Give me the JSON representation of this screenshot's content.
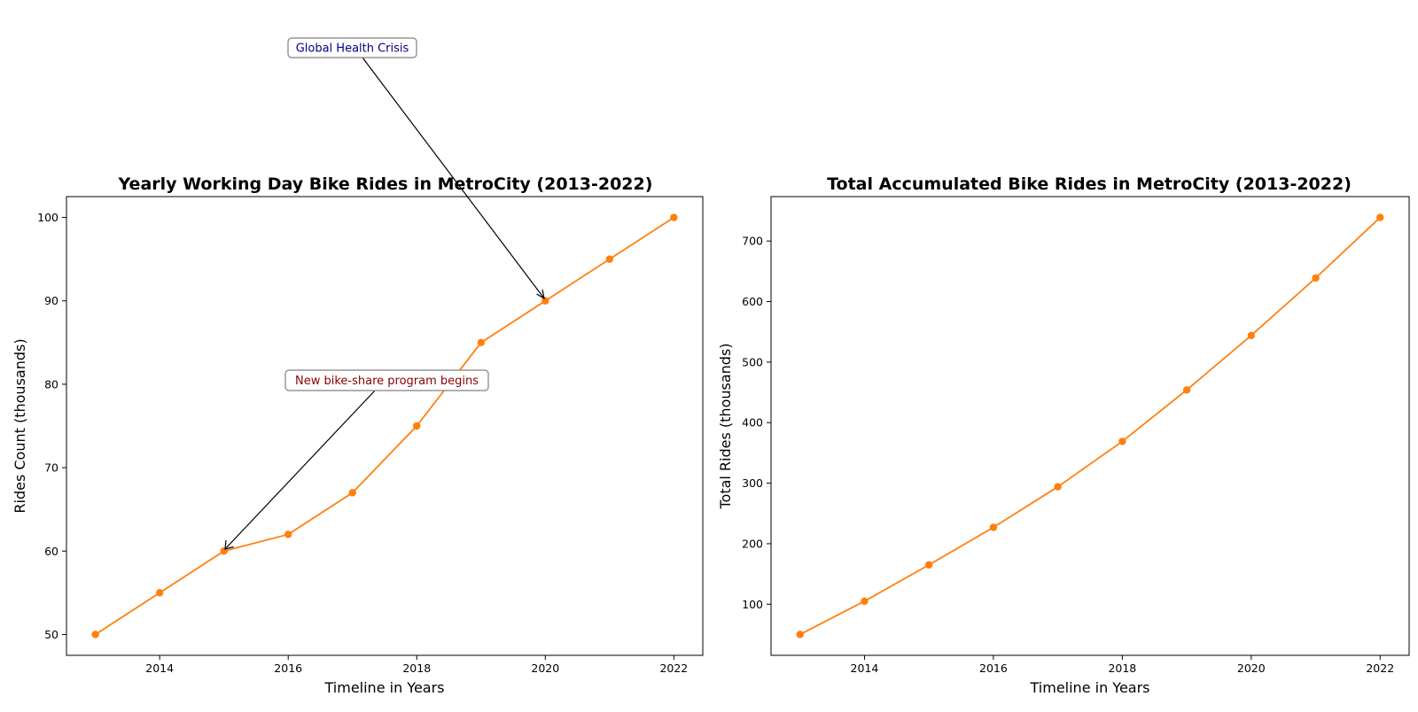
{
  "colors": {
    "line": "#ff7f0e",
    "annotation_health": "#000080",
    "annotation_program": "#8b0000",
    "axis": "#000000",
    "background": "#ffffff"
  },
  "chart_data": [
    {
      "type": "line",
      "title": "Yearly Working Day Bike Rides in MetroCity (2013-2022)",
      "xlabel": "Timeline in Years",
      "ylabel": "Rides Count (thousands)",
      "x": [
        2013,
        2014,
        2015,
        2016,
        2017,
        2018,
        2019,
        2020,
        2021,
        2022
      ],
      "values": [
        50,
        55,
        60,
        62,
        67,
        75,
        85,
        90,
        95,
        100
      ],
      "xlim": [
        2012.55,
        2022.45
      ],
      "ylim": [
        47.5,
        102.5
      ],
      "xticks": [
        2014,
        2016,
        2018,
        2020,
        2022
      ],
      "yticks": [
        50,
        60,
        70,
        80,
        90,
        100
      ],
      "grid": false,
      "annotations": [
        {
          "text": "Global Health Crisis",
          "point": [
            2020,
            90
          ],
          "color_key": "annotation_health"
        },
        {
          "text": "New bike-share program begins",
          "point": [
            2015,
            60
          ],
          "color_key": "annotation_program"
        }
      ]
    },
    {
      "type": "line",
      "title": "Total Accumulated Bike Rides in MetroCity (2013-2022)",
      "xlabel": "Timeline in Years",
      "ylabel": "Total Rides (thousands)",
      "x": [
        2013,
        2014,
        2015,
        2016,
        2017,
        2018,
        2019,
        2020,
        2021,
        2022
      ],
      "values": [
        50,
        105,
        165,
        227,
        294,
        369,
        454,
        544,
        639,
        739
      ],
      "xlim": [
        2012.55,
        2022.45
      ],
      "ylim": [
        15.55,
        773.45
      ],
      "xticks": [
        2014,
        2016,
        2018,
        2020,
        2022
      ],
      "yticks": [
        100,
        200,
        300,
        400,
        500,
        600,
        700
      ],
      "grid": false,
      "annotations": []
    }
  ]
}
